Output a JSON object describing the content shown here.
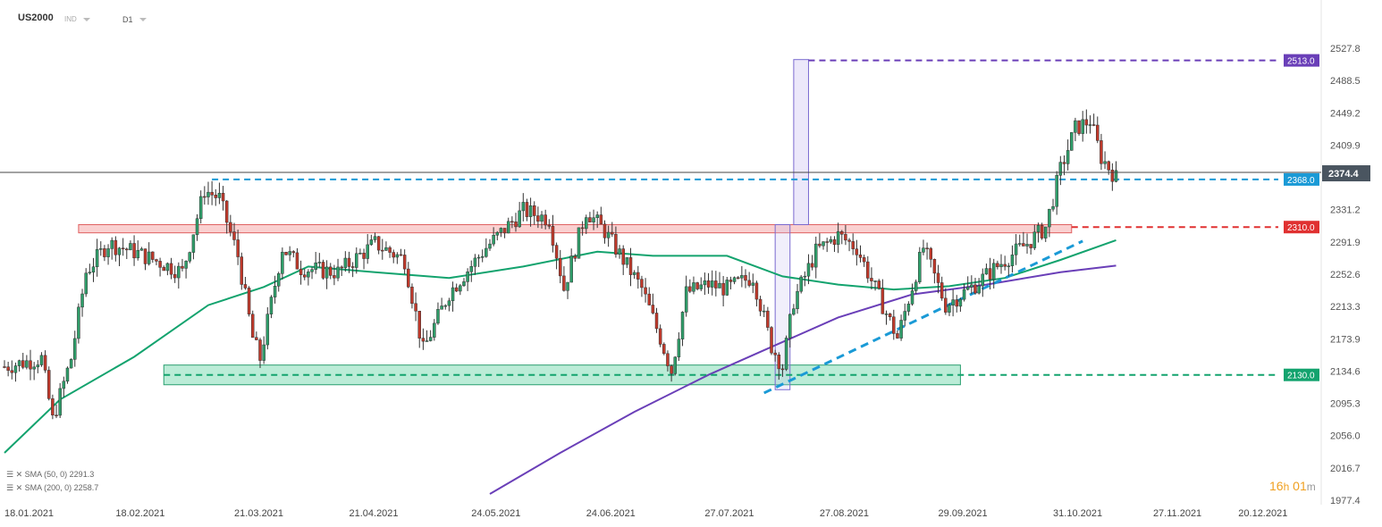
{
  "header": {
    "symbol": "US2000",
    "type": "IND",
    "timeframe": "D1"
  },
  "legend": [
    {
      "label": "SMA (50, 0) 2291.3",
      "color": "#00a86b"
    },
    {
      "label": "SMA (200, 0) 2258.7",
      "color": "#6a3fb8"
    }
  ],
  "countdown": {
    "hours": "16",
    "h": "h",
    "minutes": "01",
    "m": "m"
  },
  "colors": {
    "up": "#2f9e6a",
    "down": "#c0392b",
    "wick": "#333333",
    "sma50": "#13a36e",
    "sma200": "#6a3fb8"
  },
  "chart_data": {
    "type": "candlestick",
    "title": "",
    "xlabel": "",
    "ylabel": "",
    "ylim": [
      1977.4,
      2527.8
    ],
    "grid": false,
    "y_ticks": [
      "2527.8",
      "2488.5",
      "2449.2",
      "2409.9",
      "2374.4",
      "2331.2",
      "2291.9",
      "2252.6",
      "2213.3",
      "2173.9",
      "2134.6",
      "2095.3",
      "2056.0",
      "2016.7",
      "1977.4"
    ],
    "x_ticks": [
      "18.01.2021",
      "18.02.2021",
      "21.03.2021",
      "21.04.2021",
      "24.05.2021",
      "24.06.2021",
      "27.07.2021",
      "27.08.2021",
      "29.09.2021",
      "31.10.2021",
      "27.11.2021",
      "20.12.2021"
    ],
    "x_tick_index": [
      0,
      30,
      62,
      93,
      126,
      157,
      189,
      220,
      252,
      283,
      310,
      333
    ],
    "current_price": "2374.4",
    "levels": [
      {
        "name": "level-2513",
        "label": "2513.0",
        "value": 2513.0,
        "color": "#6a3fb8"
      },
      {
        "name": "level-2368",
        "label": "2368.0",
        "value": 2368.0,
        "color": "#1a9ad6"
      },
      {
        "name": "level-2310",
        "label": "2310.0",
        "value": 2310.0,
        "color": "#e03131"
      },
      {
        "name": "level-2130",
        "label": "2130.0",
        "value": 2130.0,
        "color": "#13a36e"
      }
    ],
    "zones": [
      {
        "name": "resistance-zone",
        "from_index": 20,
        "to_index": 288,
        "low": 2303,
        "high": 2313,
        "fill": "rgba(240,120,120,0.35)",
        "stroke": "#e06060"
      },
      {
        "name": "support-zone",
        "from_index": 43,
        "to_index": 258,
        "low": 2118,
        "high": 2142,
        "fill": "rgba(60,200,140,0.35)",
        "stroke": "#2aa070"
      },
      {
        "name": "measure-box-lower",
        "from_index": 208,
        "to_index": 212,
        "low": 2112,
        "high": 2313,
        "fill": "rgba(200,190,240,0.25)",
        "stroke": "#7a6ad0"
      },
      {
        "name": "measure-box-upper",
        "from_index": 213,
        "to_index": 217,
        "low": 2313,
        "high": 2514,
        "fill": "rgba(200,190,240,0.35)",
        "stroke": "#7a6ad0"
      }
    ],
    "trendline": {
      "x1_index": 205,
      "y1": 2108,
      "x2_index": 291,
      "y2": 2293,
      "color": "#1a9ad6"
    },
    "sma50_points": [
      [
        0,
        2035
      ],
      [
        15,
        2100
      ],
      [
        35,
        2152
      ],
      [
        55,
        2215
      ],
      [
        70,
        2237
      ],
      [
        82,
        2262
      ],
      [
        100,
        2255
      ],
      [
        120,
        2248
      ],
      [
        140,
        2262
      ],
      [
        160,
        2280
      ],
      [
        175,
        2275
      ],
      [
        195,
        2275
      ],
      [
        210,
        2250
      ],
      [
        225,
        2240
      ],
      [
        240,
        2234
      ],
      [
        255,
        2238
      ],
      [
        270,
        2248
      ],
      [
        285,
        2270
      ],
      [
        300,
        2294
      ]
    ],
    "sma200_points": [
      [
        131,
        1985
      ],
      [
        150,
        2035
      ],
      [
        170,
        2085
      ],
      [
        190,
        2130
      ],
      [
        205,
        2160
      ],
      [
        225,
        2200
      ],
      [
        245,
        2228
      ],
      [
        265,
        2240
      ],
      [
        285,
        2255
      ],
      [
        300,
        2263
      ]
    ]
  }
}
